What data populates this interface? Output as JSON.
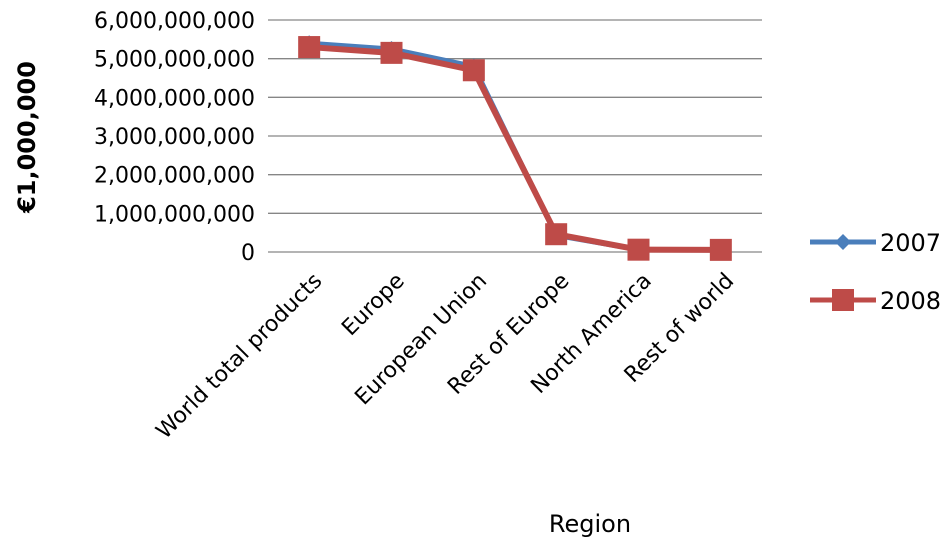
{
  "chart_data": {
    "type": "line",
    "categories": [
      "World total products",
      "Europe",
      "European Union",
      "Rest of Europe",
      "North America",
      "Rest of world"
    ],
    "series": [
      {
        "name": "2007",
        "values": [
          5400000000,
          5250000000,
          4800000000,
          430000000,
          60000000,
          50000000
        ],
        "color": "#4a7ebb",
        "marker": "diamond"
      },
      {
        "name": "2008",
        "values": [
          5300000000,
          5150000000,
          4700000000,
          460000000,
          60000000,
          55000000
        ],
        "color": "#be4b48",
        "marker": "square"
      }
    ],
    "ylabel": "€1,000,000",
    "xlabel": "Region",
    "ylim": [
      0,
      6000000000
    ],
    "y_ticks": [
      "0",
      "1,000,000,000",
      "2,000,000,000",
      "3,000,000,000",
      "4,000,000,000",
      "5,000,000,000",
      "6,000,000,000"
    ],
    "grid": true,
    "legend_position": "right"
  }
}
